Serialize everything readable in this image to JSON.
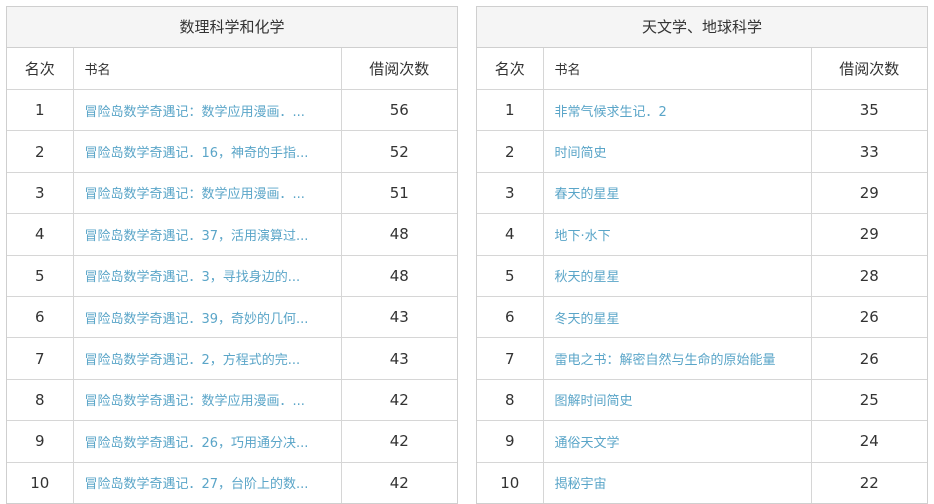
{
  "colors": {
    "link": "#5aa5c8",
    "header_bg": "#f5f5f5",
    "border": "#cfcfcf"
  },
  "tables": [
    {
      "category": "数理科学和化学",
      "headers": {
        "rank": "名次",
        "title": "书名",
        "count": "借阅次数"
      },
      "rows": [
        {
          "rank": "1",
          "title": "冒险岛数学奇遇记：数学应用漫画．...",
          "count": "56"
        },
        {
          "rank": "2",
          "title": "冒险岛数学奇遇记．16，神奇的手指...",
          "count": "52"
        },
        {
          "rank": "3",
          "title": "冒险岛数学奇遇记：数学应用漫画．...",
          "count": "51"
        },
        {
          "rank": "4",
          "title": "冒险岛数学奇遇记．37，活用演算过...",
          "count": "48"
        },
        {
          "rank": "5",
          "title": "冒险岛数学奇遇记．3，寻找身边的...",
          "count": "48"
        },
        {
          "rank": "6",
          "title": "冒险岛数学奇遇记．39，奇妙的几何...",
          "count": "43"
        },
        {
          "rank": "7",
          "title": "冒险岛数学奇遇记．2，方程式的完...",
          "count": "43"
        },
        {
          "rank": "8",
          "title": "冒险岛数学奇遇记：数学应用漫画．...",
          "count": "42"
        },
        {
          "rank": "9",
          "title": "冒险岛数学奇遇记．26，巧用通分决...",
          "count": "42"
        },
        {
          "rank": "10",
          "title": "冒险岛数学奇遇记．27，台阶上的数...",
          "count": "42"
        }
      ]
    },
    {
      "category": "天文学、地球科学",
      "headers": {
        "rank": "名次",
        "title": "书名",
        "count": "借阅次数"
      },
      "rows": [
        {
          "rank": "1",
          "title": "非常气候求生记．2",
          "count": "35"
        },
        {
          "rank": "2",
          "title": "时间简史",
          "count": "33"
        },
        {
          "rank": "3",
          "title": "春天的星星",
          "count": "29"
        },
        {
          "rank": "4",
          "title": "地下·水下",
          "count": "29"
        },
        {
          "rank": "5",
          "title": "秋天的星星",
          "count": "28"
        },
        {
          "rank": "6",
          "title": "冬天的星星",
          "count": "26"
        },
        {
          "rank": "7",
          "title": "雷电之书：解密自然与生命的原始能量",
          "count": "26"
        },
        {
          "rank": "8",
          "title": "图解时间简史",
          "count": "25"
        },
        {
          "rank": "9",
          "title": "通俗天文学",
          "count": "24"
        },
        {
          "rank": "10",
          "title": "揭秘宇宙",
          "count": "22"
        }
      ]
    }
  ]
}
